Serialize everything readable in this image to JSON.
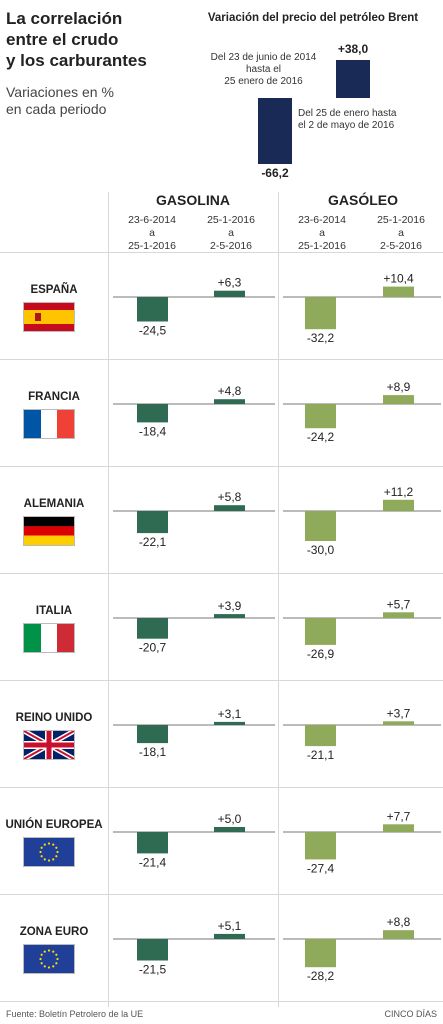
{
  "header": {
    "title_lines": [
      "La correlación",
      "entre el crudo",
      "y los carburantes"
    ],
    "subtitle_lines": [
      "Variaciones en %",
      "en cada periodo"
    ]
  },
  "brent": {
    "title": "Variación del precio del petróleo Brent",
    "period1_note": [
      "Del 23 de junio de 2014",
      "hasta el",
      "25 enero de 2016"
    ],
    "period2_note": [
      "Del 25 de enero hasta",
      "el 2 de mayo de 2016"
    ],
    "value1": -66.2,
    "value2": 38.0,
    "value1_label": "-66,2",
    "value2_label": "+38,0",
    "bar_color": "#1a2a57"
  },
  "columns": {
    "gasolina": "GASOLINA",
    "gasoleo": "GASÓLEO",
    "period1": [
      "23-6-2014",
      "a",
      "25-1-2016"
    ],
    "period2": [
      "25-1-2016",
      "a",
      "2-5-2016"
    ]
  },
  "chart_data": {
    "type": "bar",
    "categories": [
      "ESPAÑA",
      "FRANCIA",
      "ALEMANIA",
      "ITALIA",
      "REINO UNIDO",
      "UNIÓN EUROPEA",
      "ZONA EURO"
    ],
    "series": [
      {
        "name": "GASOLINA 23-6-2014 a 25-1-2016",
        "values": [
          -24.5,
          -18.4,
          -22.1,
          -20.7,
          -18.1,
          -21.4,
          -21.5
        ],
        "labels": [
          "-24,5",
          "-18,4",
          "-22,1",
          "-20,7",
          "-18,1",
          "-21,4",
          "-21,5"
        ]
      },
      {
        "name": "GASOLINA 25-1-2016 a 2-5-2016",
        "values": [
          6.3,
          4.8,
          5.8,
          3.9,
          3.1,
          5.0,
          5.1
        ],
        "labels": [
          "+6,3",
          "+4,8",
          "+5,8",
          "+3,9",
          "+3,1",
          "+5,0",
          "+5,1"
        ]
      },
      {
        "name": "GASÓLEO 23-6-2014 a 25-1-2016",
        "values": [
          -32.2,
          -24.2,
          -30.0,
          -26.9,
          -21.1,
          -27.4,
          -28.2
        ],
        "labels": [
          "-32,2",
          "-24,2",
          "-30,0",
          "-26,9",
          "-21,1",
          "-27,4",
          "-28,2"
        ]
      },
      {
        "name": "GASÓLEO 25-1-2016 a 2-5-2016",
        "values": [
          10.4,
          8.9,
          11.2,
          5.7,
          3.7,
          7.7,
          8.8
        ],
        "labels": [
          "+10,4",
          "+8,9",
          "+11,2",
          "+5,7",
          "+3,7",
          "+7,7",
          "+8,8"
        ]
      }
    ],
    "colors": {
      "gasolina": "#2e6b52",
      "gasoleo": "#8faa5a"
    }
  },
  "flags": [
    "spain",
    "france",
    "germany",
    "italy",
    "uk",
    "eu",
    "eu"
  ],
  "footer": {
    "source": "Fuente: Boletín Petrolero de la UE",
    "brand": "CINCO DÍAS"
  }
}
